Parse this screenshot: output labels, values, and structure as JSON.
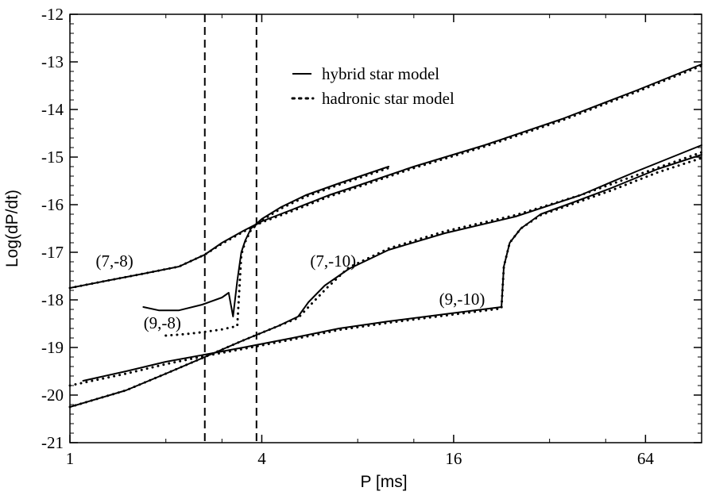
{
  "chart_data": {
    "type": "line",
    "title": "",
    "xlabel": "P [ms]",
    "ylabel": "Log(dP/dt)",
    "xscale": "log2",
    "xlim": [
      1,
      96
    ],
    "ylim": [
      -21,
      -12
    ],
    "x_ticks": [
      1,
      4,
      16,
      64
    ],
    "x_tick_labels": [
      "1",
      "4",
      "16",
      "64"
    ],
    "y_ticks": [
      -21,
      -20,
      -19,
      -18,
      -17,
      -16,
      -15,
      -14,
      -13,
      -12
    ],
    "y_tick_labels": [
      "-21",
      "-20",
      "-19",
      "-18",
      "-17",
      "-16",
      "-15",
      "-14",
      "-13",
      "-12"
    ],
    "grid": false,
    "legend_position": "top-center",
    "legend": [
      {
        "label": "hybrid star model",
        "style": "solid"
      },
      {
        "label": "hadronic star model",
        "style": "dotted"
      }
    ],
    "vertical_lines": [
      {
        "x": 2.65,
        "style": "dashed"
      },
      {
        "x": 3.85,
        "style": "dashed"
      }
    ],
    "annotations": [
      {
        "text": "(7,-8)",
        "x": 1.38,
        "y": -17.3
      },
      {
        "text": "(9,-8)",
        "x": 1.95,
        "y": -18.6
      },
      {
        "text": "(7,-10)",
        "x": 6.7,
        "y": -17.3
      },
      {
        "text": "(9,-10)",
        "x": 17.0,
        "y": -18.1
      }
    ],
    "series": [
      {
        "name": "hybrid star model",
        "style": "solid",
        "curves": [
          {
            "id": "(7,-8)",
            "x": [
              1.0,
              1.3,
              1.7,
              2.2,
              2.65,
              3.0,
              3.5,
              4.0,
              5.0,
              6.5,
              8.0,
              12.0,
              20.0,
              35.0,
              60.0,
              96.0
            ],
            "y": [
              -17.75,
              -17.6,
              -17.45,
              -17.3,
              -17.05,
              -16.8,
              -16.55,
              -16.35,
              -16.1,
              -15.8,
              -15.6,
              -15.2,
              -14.75,
              -14.2,
              -13.6,
              -13.05
            ]
          },
          {
            "id": "(9,-8)",
            "x": [
              1.7,
              1.9,
              2.2,
              2.6,
              3.0,
              3.15,
              3.25,
              3.35,
              3.45,
              3.55,
              3.7,
              4.0,
              4.6,
              5.5,
              7.0,
              10.0
            ],
            "y": [
              -18.15,
              -18.22,
              -18.22,
              -18.1,
              -17.95,
              -17.85,
              -18.35,
              -17.6,
              -17.0,
              -16.75,
              -16.5,
              -16.3,
              -16.05,
              -15.8,
              -15.55,
              -15.2
            ]
          },
          {
            "id": "(7,-10)",
            "x": [
              1.0,
              1.5,
              2.0,
              2.65,
              3.5,
              4.5,
              5.2,
              5.6,
              6.3,
              7.5,
              10.0,
              15.0,
              25.0,
              40.0,
              60.0,
              96.0
            ],
            "y": [
              -20.25,
              -19.9,
              -19.55,
              -19.2,
              -18.85,
              -18.55,
              -18.35,
              -18.05,
              -17.7,
              -17.35,
              -16.95,
              -16.6,
              -16.25,
              -15.8,
              -15.3,
              -14.75
            ]
          },
          {
            "id": "(9,-10)",
            "x": [
              1.1,
              1.5,
              2.0,
              2.65,
              3.5,
              5.0,
              7.0,
              10.0,
              15.0,
              22.6,
              23.0,
              24.0,
              26.0,
              30.0,
              38.0,
              50.0,
              70.0,
              96.0
            ],
            "y": [
              -19.7,
              -19.5,
              -19.3,
              -19.15,
              -19.0,
              -18.8,
              -18.6,
              -18.45,
              -18.3,
              -18.15,
              -17.3,
              -16.8,
              -16.5,
              -16.2,
              -15.95,
              -15.65,
              -15.25,
              -14.95
            ]
          }
        ]
      },
      {
        "name": "hadronic star model",
        "style": "dotted",
        "curves": [
          {
            "id": "(7,-8)",
            "x": [
              1.0,
              1.3,
              1.7,
              2.2,
              2.65,
              3.0,
              3.5,
              4.0,
              5.0,
              6.5,
              8.0,
              12.0,
              20.0,
              35.0,
              60.0,
              96.0
            ],
            "y": [
              -17.75,
              -17.6,
              -17.45,
              -17.3,
              -17.05,
              -16.82,
              -16.57,
              -16.37,
              -16.13,
              -15.83,
              -15.63,
              -15.23,
              -14.78,
              -14.23,
              -13.63,
              -13.08
            ]
          },
          {
            "id": "(9,-8)",
            "x": [
              2.0,
              2.3,
              2.6,
              3.0,
              3.35,
              3.45,
              3.55,
              3.7,
              4.0,
              4.6,
              5.5,
              7.0,
              10.0
            ],
            "y": [
              -18.75,
              -18.72,
              -18.68,
              -18.62,
              -18.55,
              -17.05,
              -16.78,
              -16.53,
              -16.33,
              -16.08,
              -15.83,
              -15.58,
              -15.23
            ]
          },
          {
            "id": "(7,-10)",
            "x": [
              1.0,
              1.5,
              2.0,
              2.65,
              3.5,
              4.5,
              5.2,
              5.7,
              6.4,
              7.5,
              10.0,
              15.0,
              25.0,
              40.0,
              60.0,
              96.0
            ],
            "y": [
              -20.25,
              -19.9,
              -19.55,
              -19.2,
              -18.85,
              -18.55,
              -18.38,
              -18.1,
              -17.75,
              -17.32,
              -16.92,
              -16.56,
              -16.22,
              -15.8,
              -15.38,
              -14.9
            ]
          },
          {
            "id": "(9,-10)",
            "x": [
              1.0,
              1.5,
              2.0,
              2.65,
              3.5,
              5.0,
              7.0,
              10.0,
              15.0,
              22.6,
              23.0,
              24.0,
              26.0,
              30.0,
              38.0,
              50.0,
              70.0,
              96.0
            ],
            "y": [
              -19.8,
              -19.55,
              -19.35,
              -19.18,
              -19.03,
              -18.83,
              -18.63,
              -18.48,
              -18.33,
              -18.18,
              -17.3,
              -16.8,
              -16.5,
              -16.22,
              -15.98,
              -15.7,
              -15.32,
              -15.02
            ]
          }
        ]
      }
    ]
  }
}
